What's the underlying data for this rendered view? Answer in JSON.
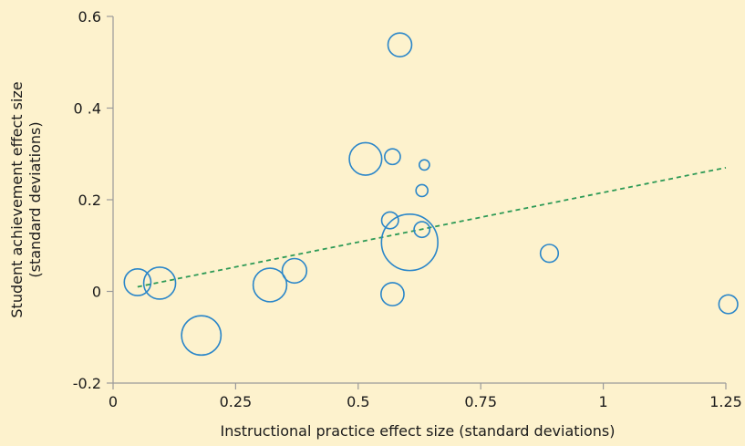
{
  "chart_data": {
    "type": "scatter",
    "title": "",
    "xlabel": "Instructional practice effect size (standard deviations)",
    "ylabel_lines": [
      "Student achievement effect size",
      "(standard deviations)"
    ],
    "xlim": [
      0,
      1.25
    ],
    "ylim": [
      -0.2,
      0.6
    ],
    "x_ticks": [
      0,
      0.25,
      0.5,
      0.75,
      1,
      1.25
    ],
    "x_tick_labels": [
      "0",
      "0.25",
      "0.5",
      "0.75",
      "1",
      "1.25"
    ],
    "y_ticks": [
      -0.2,
      0,
      0.2,
      0.4,
      0.6
    ],
    "y_tick_labels": [
      "-0.2",
      "0",
      "0.2",
      "0 .4",
      "0.6"
    ],
    "grid": false,
    "colors": {
      "bubble": "#2a86c9",
      "trend": "#2e9a56",
      "background": "#fdf2cd",
      "axis": "#9a9a9a"
    },
    "points": [
      {
        "x": 0.05,
        "y": 0.02,
        "size": 2.0
      },
      {
        "x": 0.095,
        "y": 0.018,
        "size": 2.9
      },
      {
        "x": 0.18,
        "y": -0.096,
        "size": 4.4
      },
      {
        "x": 0.32,
        "y": 0.014,
        "size": 3.2
      },
      {
        "x": 0.37,
        "y": 0.045,
        "size": 1.7
      },
      {
        "x": 0.515,
        "y": 0.289,
        "size": 3.0
      },
      {
        "x": 0.565,
        "y": 0.155,
        "size": 0.8
      },
      {
        "x": 0.57,
        "y": 0.294,
        "size": 0.7
      },
      {
        "x": 0.57,
        "y": -0.006,
        "size": 1.5
      },
      {
        "x": 0.585,
        "y": 0.538,
        "size": 1.6
      },
      {
        "x": 0.605,
        "y": 0.107,
        "size": 9.0
      },
      {
        "x": 0.63,
        "y": 0.22,
        "size": 0.4
      },
      {
        "x": 0.63,
        "y": 0.135,
        "size": 0.7
      },
      {
        "x": 0.635,
        "y": 0.276,
        "size": 0.3
      },
      {
        "x": 0.89,
        "y": 0.083,
        "size": 0.9
      },
      {
        "x": 1.255,
        "y": -0.028,
        "size": 1.0
      }
    ],
    "trendline": {
      "x": [
        0.05,
        1.25
      ],
      "y": [
        0.01,
        0.27
      ]
    }
  }
}
